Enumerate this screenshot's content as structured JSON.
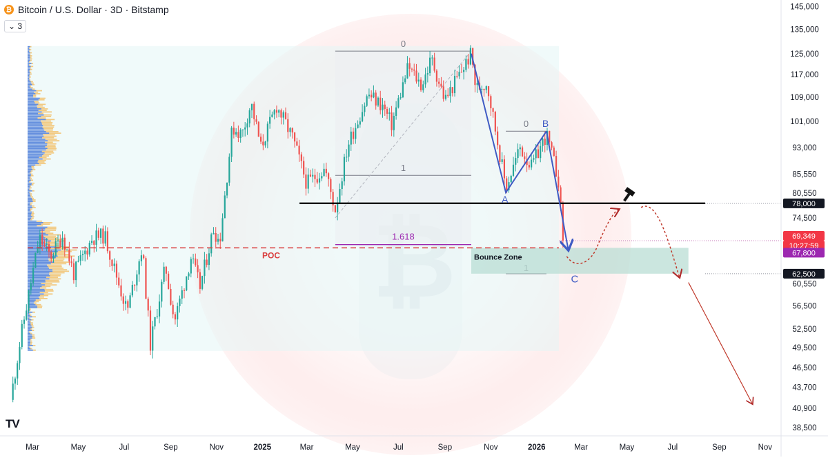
{
  "header": {
    "title": "Bitcoin / U.S. Dollar · 3D · Bitstamp",
    "badge": "3"
  },
  "colors": {
    "up": "#26a69a",
    "down": "#ef5350",
    "profile_blue": "#4a7ad8",
    "profile_orange": "#f2c474",
    "fib": "#787b86",
    "wave": "#3f5bc4",
    "poc": "#d93b3b",
    "support": "#000000",
    "bounce_zone": "#b9ddd4",
    "projection": "#c0392b"
  },
  "annotations": {
    "fib_top_0": "0",
    "fib_top_1": "1",
    "fib_1618": "1.618",
    "fib_small_0": "0",
    "fib_small_1": "1",
    "wave_a": "A",
    "wave_b": "B",
    "wave_c": "C",
    "poc": "POC",
    "bounce_zone": "Bounce Zone"
  },
  "chart_data": {
    "type": "candlestick",
    "title": "Bitcoin / U.S. Dollar · 3D · Bitstamp",
    "x_ticks": [
      "Mar",
      "May",
      "Jul",
      "Sep",
      "Nov",
      "2025",
      "Mar",
      "May",
      "Jul",
      "Sep",
      "Nov",
      "2026",
      "Mar",
      "May",
      "Jul",
      "Sep",
      "Nov"
    ],
    "y_scale": "log",
    "y_ticks": [
      145000,
      135000,
      125000,
      117000,
      109000,
      101000,
      93000,
      85550,
      80550,
      74500,
      60550,
      56500,
      52500,
      49500,
      46500,
      43700,
      40900,
      38500
    ],
    "ylim": [
      37500,
      148000
    ],
    "price_labels": [
      {
        "value": "78,000",
        "style": "dark"
      },
      {
        "value": "69,349",
        "style": "red"
      },
      {
        "value": "10:27:59",
        "style": "red"
      },
      {
        "value": "67,800",
        "style": "purple"
      },
      {
        "value": "62,500",
        "style": "dark"
      }
    ],
    "levels": {
      "support": 78000,
      "poc": 67800,
      "bounce_zone": [
        62500,
        67800
      ],
      "fib_0": 126000,
      "fib_1": 85200,
      "fib_1618": 68500
    },
    "waves": [
      {
        "label": "A",
        "price": 80700
      },
      {
        "label": "B",
        "price": 97900
      },
      {
        "label": "C",
        "price": 67500
      }
    ],
    "price_path": [
      {
        "date": "2024-02-01",
        "price": 42000
      },
      {
        "date": "2024-02-15",
        "price": 51500
      },
      {
        "date": "2024-03-10",
        "price": 70000
      },
      {
        "date": "2024-03-25",
        "price": 66000
      },
      {
        "date": "2024-04-10",
        "price": 70500
      },
      {
        "date": "2024-04-25",
        "price": 62500
      },
      {
        "date": "2024-05-20",
        "price": 70000
      },
      {
        "date": "2024-06-05",
        "price": 70500
      },
      {
        "date": "2024-07-05",
        "price": 55500
      },
      {
        "date": "2024-07-25",
        "price": 68000
      },
      {
        "date": "2024-08-05",
        "price": 50000
      },
      {
        "date": "2024-08-25",
        "price": 64000
      },
      {
        "date": "2024-09-06",
        "price": 53800
      },
      {
        "date": "2024-09-28",
        "price": 65800
      },
      {
        "date": "2024-10-10",
        "price": 60000
      },
      {
        "date": "2024-10-28",
        "price": 72000
      },
      {
        "date": "2024-11-05",
        "price": 69000
      },
      {
        "date": "2024-11-22",
        "price": 99000
      },
      {
        "date": "2024-12-05",
        "price": 97000
      },
      {
        "date": "2024-12-17",
        "price": 107000
      },
      {
        "date": "2024-12-30",
        "price": 93000
      },
      {
        "date": "2025-01-20",
        "price": 106000
      },
      {
        "date": "2025-02-10",
        "price": 96000
      },
      {
        "date": "2025-03-01",
        "price": 83000
      },
      {
        "date": "2025-03-25",
        "price": 87000
      },
      {
        "date": "2025-04-08",
        "price": 76500
      },
      {
        "date": "2025-04-25",
        "price": 94000
      },
      {
        "date": "2025-05-22",
        "price": 110000
      },
      {
        "date": "2025-06-10",
        "price": 106000
      },
      {
        "date": "2025-06-22",
        "price": 100000
      },
      {
        "date": "2025-07-14",
        "price": 120000
      },
      {
        "date": "2025-08-01",
        "price": 113000
      },
      {
        "date": "2025-08-14",
        "price": 123000
      },
      {
        "date": "2025-09-01",
        "price": 108000
      },
      {
        "date": "2025-09-18",
        "price": 116000
      },
      {
        "date": "2025-10-06",
        "price": 125000
      },
      {
        "date": "2025-10-12",
        "price": 112000
      },
      {
        "date": "2025-10-27",
        "price": 114000
      },
      {
        "date": "2025-11-21",
        "price": 82000
      },
      {
        "date": "2025-12-10",
        "price": 93000
      },
      {
        "date": "2025-12-25",
        "price": 87500
      },
      {
        "date": "2026-01-14",
        "price": 97000
      },
      {
        "date": "2026-01-30",
        "price": 84000
      },
      {
        "date": "2026-02-05",
        "price": 69349
      }
    ],
    "projection": [
      {
        "date": "2026-02-10",
        "price": 66000
      },
      {
        "date": "2026-03-15",
        "price": 66500
      },
      {
        "date": "2026-04-20",
        "price": 76500
      },
      {
        "date": "2026-05-20",
        "price": 77000
      },
      {
        "date": "2026-06-20",
        "price": 64000
      },
      {
        "date": "2026-07-10",
        "price": 60800
      },
      {
        "date": "2026-10-15",
        "price": 41500
      }
    ]
  }
}
